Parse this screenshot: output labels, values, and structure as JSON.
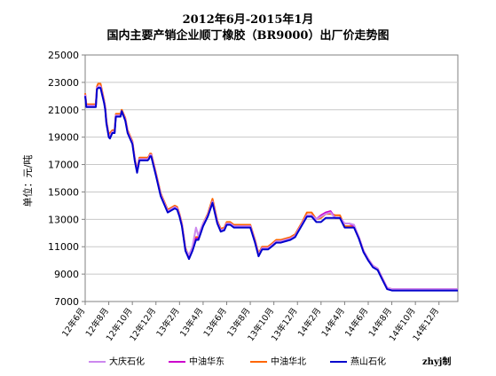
{
  "title_line1": "2012年6月-2015年1月",
  "title_line2": "国内主要产销企业顺丁橡胶（BR9000）出厂价走势图",
  "ylabel": "单位：元/吨",
  "credit": "zhyj制",
  "colors": {
    "dq": "#cc88ee",
    "hd": "#cc00cc",
    "hb": "#ff6600",
    "ys": "#0000cc",
    "grid": "#c8c8c8",
    "axis": "#808080"
  },
  "legend": [
    {
      "name": "大庆石化",
      "color": "#cc88ee"
    },
    {
      "name": "中油华东",
      "color": "#cc00cc"
    },
    {
      "name": "中油华北",
      "color": "#ff6600"
    },
    {
      "name": "燕山石化",
      "color": "#0000cc"
    }
  ],
  "chart_data": {
    "type": "line",
    "title": "2012年6月-2015年1月 国内主要产销企业顺丁橡胶（BR9000）出厂价走势图",
    "ylabel": "单位：元/吨",
    "ylim": [
      7000,
      25000
    ],
    "yticks": [
      7000,
      9000,
      11000,
      13000,
      15000,
      17000,
      19000,
      21000,
      23000,
      25000
    ],
    "xlim": [
      0,
      31.6
    ],
    "x_tick_positions": [
      0,
      2,
      4,
      6,
      8,
      10,
      12,
      14,
      16,
      18,
      20,
      22,
      24,
      26,
      28,
      30
    ],
    "x_tick_labels": [
      "12年6月",
      "12年8月",
      "12年10月",
      "12年12月",
      "13年2月",
      "13年4月",
      "13年6月",
      "13年8月",
      "13年10月",
      "13年12月",
      "14年2月",
      "14年4月",
      "14年6月",
      "14年8月",
      "14年10月",
      "14年12月"
    ],
    "grid": true,
    "legend_position": "bottom",
    "series": [
      {
        "name": "燕山石化",
        "x": [
          0,
          0.1,
          0.9,
          1.0,
          1.1,
          1.3,
          1.6,
          1.7,
          1.8,
          2.0,
          2.1,
          2.3,
          2.5,
          2.6,
          3.0,
          3.1,
          3.4,
          3.6,
          4.0,
          4.2,
          4.4,
          4.6,
          5.0,
          5.2,
          5.3,
          5.4,
          5.5,
          5.6,
          6.0,
          6.4,
          7.0,
          7.6,
          7.8,
          8.0,
          8.2,
          8.5,
          8.8,
          9.1,
          9.4,
          9.6,
          9.8,
          10.0,
          10.4,
          10.8,
          11.2,
          11.5,
          11.8,
          12.0,
          12.3,
          12.6,
          12.9,
          13.2,
          13.5,
          14.0,
          14.4,
          14.7,
          15.0,
          15.3,
          15.5,
          15.8,
          16.2,
          16.6,
          17.0,
          17.4,
          17.8,
          18.0,
          18.4,
          18.8,
          19.2,
          19.6,
          20.0,
          20.4,
          20.8,
          21.2,
          21.6,
          22.0,
          22.4,
          22.8,
          23.2,
          23.6,
          24.0,
          24.4,
          24.8,
          25.2,
          25.6,
          26.0,
          26.4,
          26.8,
          27.2,
          27.6,
          28.0,
          28.4,
          28.8,
          29.2,
          29.6,
          30.0,
          30.4,
          30.8,
          31.2,
          31.6
        ],
        "values": [
          22000,
          21200,
          21200,
          22500,
          22600,
          22600,
          21500,
          21000,
          20000,
          19000,
          18900,
          19300,
          19300,
          20500,
          20500,
          20900,
          20200,
          19300,
          18500,
          17300,
          16400,
          17300,
          17300,
          17300,
          17300,
          17400,
          17600,
          17600,
          16200,
          14700,
          13500,
          13800,
          13700,
          13200,
          12500,
          10700,
          10100,
          10700,
          11500,
          11500,
          12000,
          12500,
          13200,
          14200,
          12700,
          12100,
          12200,
          12600,
          12600,
          12400,
          12400,
          12400,
          12400,
          12400,
          11300,
          10300,
          10800,
          10800,
          10800,
          11000,
          11300,
          11300,
          11400,
          11500,
          11700,
          12000,
          12600,
          13200,
          13200,
          12800,
          12800,
          13100,
          13100,
          13100,
          13100,
          12400,
          12400,
          12400,
          11600,
          10600,
          10000,
          9500,
          9300,
          8600,
          7900,
          7800,
          7800,
          7800,
          7800,
          7800,
          7800,
          7800,
          7800,
          7800,
          7800,
          7800,
          7800,
          7800,
          7800,
          7800
        ]
      },
      {
        "name": "中油华北",
        "x": [
          0,
          0.1,
          0.9,
          1.0,
          1.1,
          1.3,
          1.6,
          1.7,
          1.8,
          2.0,
          2.1,
          2.3,
          2.5,
          2.6,
          3.0,
          3.1,
          3.4,
          3.6,
          4.0,
          4.2,
          4.4,
          4.6,
          5.0,
          5.2,
          5.3,
          5.4,
          5.5,
          5.6,
          6.0,
          6.4,
          7.0,
          7.6,
          7.8,
          8.0,
          8.2,
          8.5,
          8.8,
          9.1,
          9.4,
          9.6,
          9.8,
          10.0,
          10.4,
          10.8,
          11.2,
          11.5,
          11.8,
          12.0,
          12.3,
          12.6,
          12.9,
          13.2,
          13.5,
          14.0,
          14.4,
          14.7,
          15.0,
          15.3,
          15.5,
          15.8,
          16.2,
          16.6,
          17.0,
          17.4,
          17.8,
          18.0,
          18.4,
          18.8,
          19.2,
          19.6,
          20.0,
          20.4,
          20.8,
          21.2,
          21.6,
          22.0,
          22.4,
          22.8,
          23.2,
          23.6,
          24.0,
          24.4,
          24.8,
          25.2,
          25.6,
          26.0,
          26.4,
          26.8,
          27.2,
          27.6,
          28.0,
          28.4,
          28.8,
          29.2,
          29.6,
          30.0,
          30.4,
          30.8,
          31.2,
          31.6
        ],
        "values": [
          22200,
          21400,
          21400,
          22700,
          22900,
          22900,
          21700,
          21200,
          20200,
          19200,
          19300,
          19500,
          19500,
          20700,
          20700,
          21000,
          20400,
          19500,
          18700,
          17500,
          16600,
          17500,
          17500,
          17500,
          17500,
          17600,
          17800,
          17800,
          16400,
          14900,
          13700,
          14000,
          13900,
          13400,
          12700,
          10900,
          10300,
          10900,
          11700,
          11700,
          12200,
          12700,
          13400,
          14500,
          12900,
          12300,
          12400,
          12800,
          12800,
          12600,
          12600,
          12600,
          12600,
          12600,
          11500,
          10500,
          11000,
          11000,
          11000,
          11200,
          11500,
          11500,
          11600,
          11700,
          11900,
          12200,
          12800,
          13500,
          13500,
          13000,
          13100,
          13400,
          13400,
          13300,
          13300,
          12500,
          12500,
          12500,
          11700,
          10700,
          10100,
          9600,
          9400,
          8700,
          8000,
          7900,
          7900,
          7900,
          7900,
          7900,
          7900,
          7900,
          7900,
          7900,
          7900,
          7900,
          7900,
          7900,
          7900,
          7900
        ]
      },
      {
        "name": "中油华东",
        "x": [
          0,
          0.1,
          0.9,
          1.0,
          1.1,
          1.3,
          1.6,
          1.7,
          1.8,
          2.0,
          2.1,
          2.3,
          2.5,
          2.6,
          3.0,
          3.1,
          3.4,
          3.6,
          4.0,
          4.2,
          4.4,
          4.6,
          5.0,
          5.2,
          5.3,
          5.4,
          5.5,
          5.6,
          6.0,
          6.4,
          7.0,
          7.6,
          7.8,
          8.0,
          8.2,
          8.5,
          8.8,
          9.1,
          9.4,
          9.6,
          9.8,
          10.0,
          10.4,
          10.8,
          11.2,
          11.5,
          11.8,
          12.0,
          12.3,
          12.6,
          12.9,
          13.2,
          13.5,
          14.0,
          14.4,
          14.7,
          15.0,
          15.3,
          15.5,
          15.8,
          16.2,
          16.6,
          17.0,
          17.4,
          17.8,
          18.0,
          18.4,
          18.8,
          19.2,
          19.6,
          20.0,
          20.4,
          20.8,
          21.2,
          21.6,
          22.0,
          22.4,
          22.8,
          23.2,
          23.6,
          24.0,
          24.4,
          24.8,
          25.2,
          25.6,
          26.0,
          26.4,
          26.8,
          27.2,
          27.6,
          28.0,
          28.4,
          28.8,
          29.2,
          29.6,
          30.0,
          30.4,
          30.8,
          31.2,
          31.6
        ],
        "values": [
          22100,
          21300,
          21300,
          22600,
          22700,
          22700,
          21600,
          21100,
          20100,
          19100,
          19100,
          19400,
          19400,
          20600,
          20600,
          20900,
          20300,
          19400,
          18600,
          17400,
          16500,
          17400,
          17400,
          17400,
          17400,
          17500,
          17700,
          17700,
          16300,
          14800,
          13600,
          13900,
          13800,
          13300,
          12600,
          10800,
          10200,
          10800,
          11600,
          11600,
          12100,
          12600,
          13300,
          14300,
          12800,
          12200,
          12300,
          12700,
          12700,
          12500,
          12500,
          12500,
          12500,
          12500,
          11400,
          10400,
          10900,
          10900,
          10900,
          11100,
          11400,
          11400,
          11500,
          11600,
          11800,
          12100,
          12700,
          13300,
          13300,
          13000,
          13300,
          13500,
          13600,
          13100,
          13100,
          12700,
          12700,
          12500,
          11700,
          10700,
          10100,
          9600,
          9400,
          8700,
          8000,
          7900,
          7900,
          7900,
          7900,
          7900,
          7900,
          7900,
          7900,
          7900,
          7900,
          7900,
          7900,
          7900,
          7900,
          7900
        ]
      },
      {
        "name": "大庆石化",
        "x": [
          0,
          0.1,
          0.9,
          1.0,
          1.1,
          1.3,
          1.6,
          1.7,
          1.8,
          2.0,
          2.1,
          2.3,
          2.5,
          2.6,
          3.0,
          3.1,
          3.4,
          3.6,
          4.0,
          4.2,
          4.4,
          4.6,
          5.0,
          5.2,
          5.3,
          5.4,
          5.5,
          5.6,
          6.0,
          6.4,
          7.0,
          7.6,
          7.8,
          8.0,
          8.2,
          8.5,
          8.8,
          9.1,
          9.4,
          9.6,
          9.8,
          10.0,
          10.4,
          10.8,
          11.2,
          11.5,
          11.8,
          12.0,
          12.3,
          12.6,
          12.9,
          13.2,
          13.5,
          14.0,
          14.4,
          14.7,
          15.0,
          15.3,
          15.5,
          15.8,
          16.2,
          16.6,
          17.0,
          17.4,
          17.8,
          18.0,
          18.4,
          18.8,
          19.2,
          19.6,
          20.0,
          20.4,
          20.8,
          21.2,
          21.6,
          22.0,
          22.4,
          22.8,
          23.2,
          23.6,
          24.0,
          24.4,
          24.8,
          25.2,
          25.6,
          26.0,
          26.4,
          26.8,
          27.2,
          27.6,
          28.0,
          28.4,
          28.8,
          29.2,
          29.6,
          30.0,
          30.4,
          30.8,
          31.2,
          31.6
        ],
        "values": [
          22100,
          21300,
          21300,
          22600,
          22700,
          22700,
          21600,
          21100,
          20100,
          19100,
          19100,
          19400,
          19400,
          20600,
          20600,
          20900,
          20300,
          19400,
          18600,
          17400,
          16500,
          17400,
          17400,
          17400,
          17400,
          17500,
          17700,
          17700,
          16300,
          14800,
          13600,
          13900,
          13800,
          13300,
          12600,
          10800,
          10400,
          11000,
          12400,
          11800,
          12300,
          12700,
          13300,
          14300,
          12800,
          12200,
          12300,
          12700,
          12700,
          12500,
          12500,
          12500,
          12500,
          12500,
          11400,
          10400,
          10900,
          10900,
          10900,
          11100,
          11400,
          11400,
          11500,
          11600,
          11800,
          12100,
          12700,
          13300,
          13300,
          13000,
          13200,
          13400,
          13500,
          13100,
          13100,
          12700,
          12700,
          12600,
          11700,
          10700,
          10100,
          9600,
          9400,
          8700,
          8000,
          7900,
          7900,
          7900,
          7900,
          7900,
          7900,
          7900,
          7900,
          7900,
          7900,
          7900,
          7900,
          7900,
          7900,
          7900
        ]
      }
    ]
  }
}
